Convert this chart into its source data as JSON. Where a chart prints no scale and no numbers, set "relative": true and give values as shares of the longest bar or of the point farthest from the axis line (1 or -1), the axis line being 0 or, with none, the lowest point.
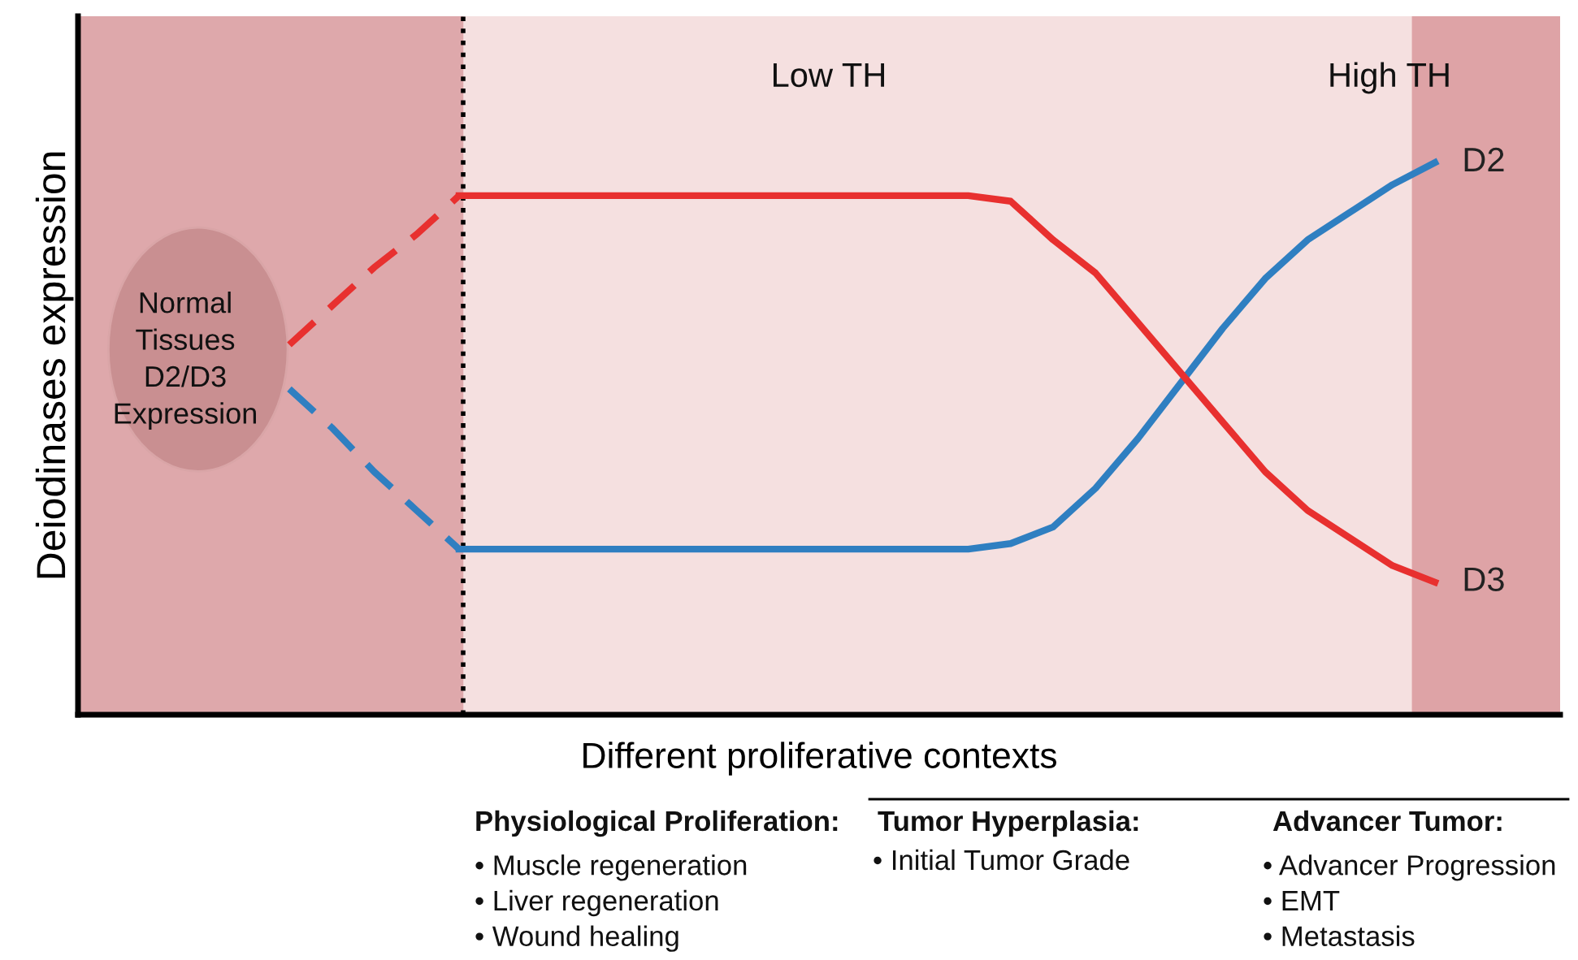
{
  "chart_data": {
    "type": "line",
    "relative": true,
    "xlabel": "Different proliferative contexts",
    "ylabel": "Deiodinases expression",
    "categories": [
      null,
      null,
      null,
      null,
      null,
      null,
      null,
      null,
      null,
      null,
      null,
      null,
      null,
      null,
      null,
      null,
      null,
      null,
      null,
      null,
      null,
      null,
      null,
      null,
      null,
      null,
      null,
      null
    ],
    "series": [
      {
        "color": "#e8302f",
        "line_style": "dashed",
        "values": [
          0.67,
          0.74,
          0.81,
          0.87,
          0.94,
          null,
          null,
          null,
          null,
          null,
          null,
          null,
          null,
          null,
          null,
          null,
          null,
          null,
          null,
          null,
          null,
          null,
          null,
          null,
          null,
          null,
          null,
          null
        ]
      },
      {
        "color": "#2f7fc1",
        "line_style": "dashed",
        "values": [
          0.59,
          0.52,
          0.44,
          0.37,
          0.3,
          null,
          null,
          null,
          null,
          null,
          null,
          null,
          null,
          null,
          null,
          null,
          null,
          null,
          null,
          null,
          null,
          null,
          null,
          null,
          null,
          null,
          null,
          null
        ]
      },
      {
        "name": "D2",
        "color": "#2f7fc1",
        "line_style": "solid",
        "values": [
          null,
          null,
          null,
          null,
          0.3,
          0.3,
          0.3,
          0.3,
          0.3,
          0.3,
          0.3,
          0.3,
          0.3,
          0.3,
          0.3,
          0.3,
          0.3,
          0.31,
          0.34,
          0.41,
          0.5,
          0.6,
          0.7,
          0.79,
          0.86,
          0.91,
          0.96,
          1.0
        ]
      },
      {
        "name": "D3",
        "color": "#e8302f",
        "line_style": "solid",
        "values": [
          null,
          null,
          null,
          null,
          0.94,
          0.94,
          0.94,
          0.94,
          0.94,
          0.94,
          0.94,
          0.94,
          0.94,
          0.94,
          0.94,
          0.94,
          0.94,
          0.93,
          0.86,
          0.8,
          0.71,
          0.62,
          0.53,
          0.44,
          0.37,
          0.32,
          0.27,
          0.24
        ]
      }
    ],
    "annotations": [
      "Low TH",
      "High TH",
      "Normal\nTissues\nD2/D3\nExpression",
      "Physiological Proliferation:",
      "Tumor Hyperplasia:",
      "Advancer Tumor:",
      "• Muscle regeneration\n• Liver regeneration\n• Wound healing",
      "• Initial Tumor Grade",
      "• Advancer Progression\n• EMT\n• Metastasis"
    ],
    "marker": "none"
  }
}
